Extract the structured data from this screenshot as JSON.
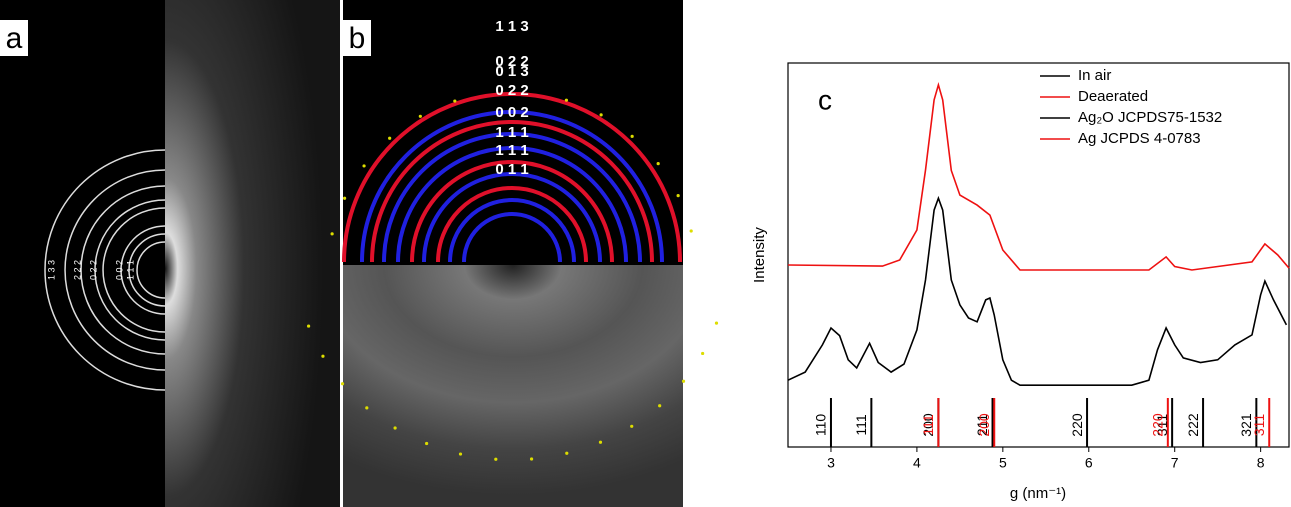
{
  "panel_a": {
    "label": "a",
    "ring_labels": [
      "1 3 3",
      "2 2 2",
      "0 2 2",
      "0 0 2",
      "1 1 1"
    ]
  },
  "panel_b": {
    "label": "b",
    "ring_labels": [
      "1 1 3",
      "0 2 2",
      "0 1 3",
      "0 2 2",
      "0 0 2",
      "1 1 1",
      "1 1 1",
      "0 1 1"
    ]
  },
  "chart_data": {
    "type": "line",
    "panel_label": "c",
    "x_label": "g (nm⁻¹)",
    "y_label": "Intensity",
    "xlim": [
      2.5,
      8.33
    ],
    "xticks": [
      3,
      4,
      5,
      6,
      7,
      8
    ],
    "ylim": [
      0,
      100
    ],
    "legend": "upper right",
    "series": [
      {
        "name": "In air",
        "color": "#000000",
        "x": [
          2.5,
          2.7,
          2.9,
          3.0,
          3.1,
          3.2,
          3.3,
          3.45,
          3.55,
          3.7,
          3.85,
          4.0,
          4.1,
          4.2,
          4.25,
          4.3,
          4.4,
          4.5,
          4.6,
          4.7,
          4.8,
          4.85,
          4.9,
          5.0,
          5.1,
          5.2,
          6.5,
          6.7,
          6.8,
          6.9,
          7.0,
          7.1,
          7.3,
          7.5,
          7.7,
          7.9,
          8.0,
          8.05,
          8.15,
          8.3
        ],
        "values": [
          17.4,
          19.5,
          26.6,
          31,
          29,
          22.7,
          20.6,
          27,
          22,
          19.5,
          21.6,
          30.5,
          43.5,
          61.7,
          64.8,
          61.7,
          43.5,
          37,
          33.6,
          32.6,
          38.3,
          38.8,
          34.4,
          22.7,
          17.4,
          16.1,
          16.1,
          17.4,
          25.3,
          31,
          26.6,
          23.2,
          22,
          22.7,
          26.6,
          29.2,
          39.6,
          43.2,
          38.3,
          31.8
        ]
      },
      {
        "name": "Deaerated",
        "color": "#ee1111",
        "x": [
          2.5,
          3.6,
          3.8,
          4.0,
          4.1,
          4.2,
          4.25,
          4.3,
          4.4,
          4.5,
          4.7,
          4.85,
          5.0,
          5.2,
          6.7,
          6.9,
          7.0,
          7.2,
          7.9,
          8.05,
          8.2,
          8.33
        ],
        "values": [
          47.4,
          47.1,
          48.7,
          56.5,
          72.1,
          90.4,
          94.3,
          90.4,
          72,
          65.6,
          63,
          60.4,
          51.3,
          46.1,
          46.1,
          49.5,
          47,
          46.1,
          48.2,
          52.9,
          50,
          46.6
        ]
      }
    ],
    "references": [
      {
        "name": "Ag₂O JCPDS75-1532",
        "color": "#000000",
        "x": [
          3.0,
          3.47,
          4.25,
          4.88,
          5.98,
          6.97,
          7.33,
          7.95
        ],
        "labels": [
          "110",
          "111",
          "200",
          "211",
          "220",
          "311",
          "222",
          "321"
        ]
      },
      {
        "name": "Ag JCPDS 4-0783",
        "color": "#ee1111",
        "x": [
          4.25,
          4.9,
          6.92,
          8.1
        ],
        "labels": [
          "111",
          "200",
          "220",
          "311"
        ]
      }
    ]
  }
}
